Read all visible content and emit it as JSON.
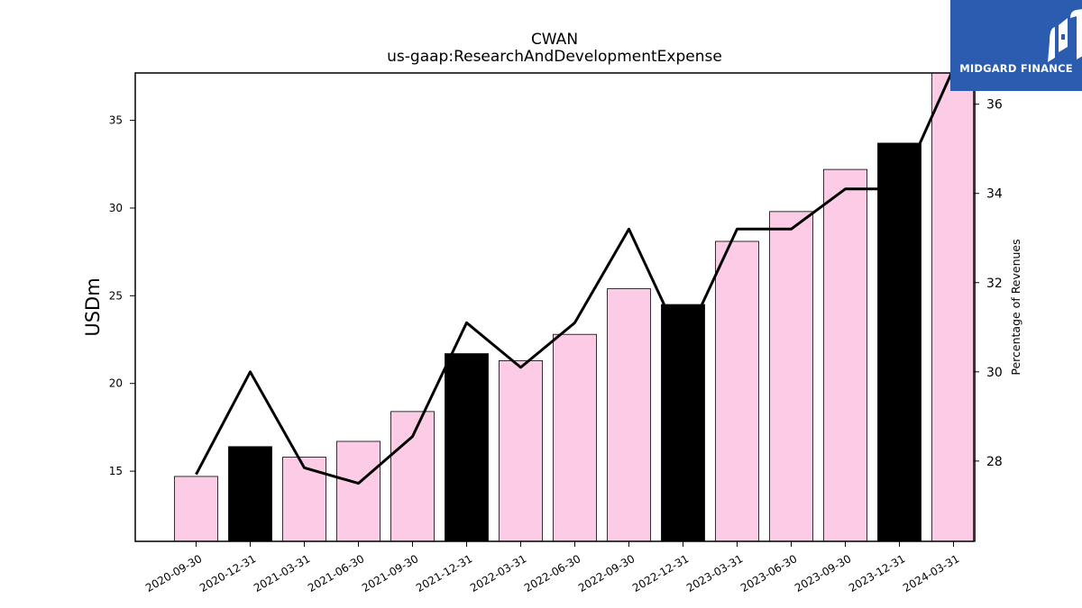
{
  "brand": {
    "name": "MIDGARD FINANCE",
    "bg_color": "#2b5cb0"
  },
  "chart_data": {
    "type": "bar",
    "title": "CWAN",
    "subtitle": "us-gaap:ResearchAndDevelopmentExpense",
    "ylabel": "USDm",
    "y2label": "Percentage of Revenues",
    "categories": [
      "2020-09-30",
      "2020-12-31",
      "2021-03-31",
      "2021-06-30",
      "2021-09-30",
      "2021-12-31",
      "2022-03-31",
      "2022-06-30",
      "2022-09-30",
      "2022-12-31",
      "2023-03-31",
      "2023-06-30",
      "2023-09-30",
      "2023-12-31",
      "2024-03-31"
    ],
    "series": [
      {
        "kind": "bar",
        "axis": "left",
        "values": [
          14.7,
          16.4,
          15.8,
          16.7,
          18.4,
          21.7,
          21.3,
          22.8,
          25.4,
          24.5,
          28.1,
          29.8,
          32.2,
          33.7,
          38.2
        ],
        "highlight": [
          false,
          true,
          false,
          false,
          false,
          true,
          false,
          false,
          false,
          true,
          false,
          false,
          false,
          true,
          false
        ],
        "color": "#fccce6",
        "highlight_color": "#000000"
      },
      {
        "kind": "line",
        "axis": "right",
        "values": [
          27.7,
          30.0,
          27.85,
          27.5,
          28.55,
          31.1,
          30.1,
          31.1,
          33.2,
          30.6,
          33.2,
          33.2,
          34.1,
          34.1,
          36.8
        ],
        "color": "#000000"
      }
    ],
    "ylim": [
      11.0,
      37.7
    ],
    "y2lim": [
      26.2,
      36.7
    ],
    "yticks": [
      15,
      20,
      25,
      30,
      35
    ],
    "y2ticks": [
      28,
      30,
      32,
      34,
      36
    ],
    "grid": false,
    "legend": "none"
  }
}
